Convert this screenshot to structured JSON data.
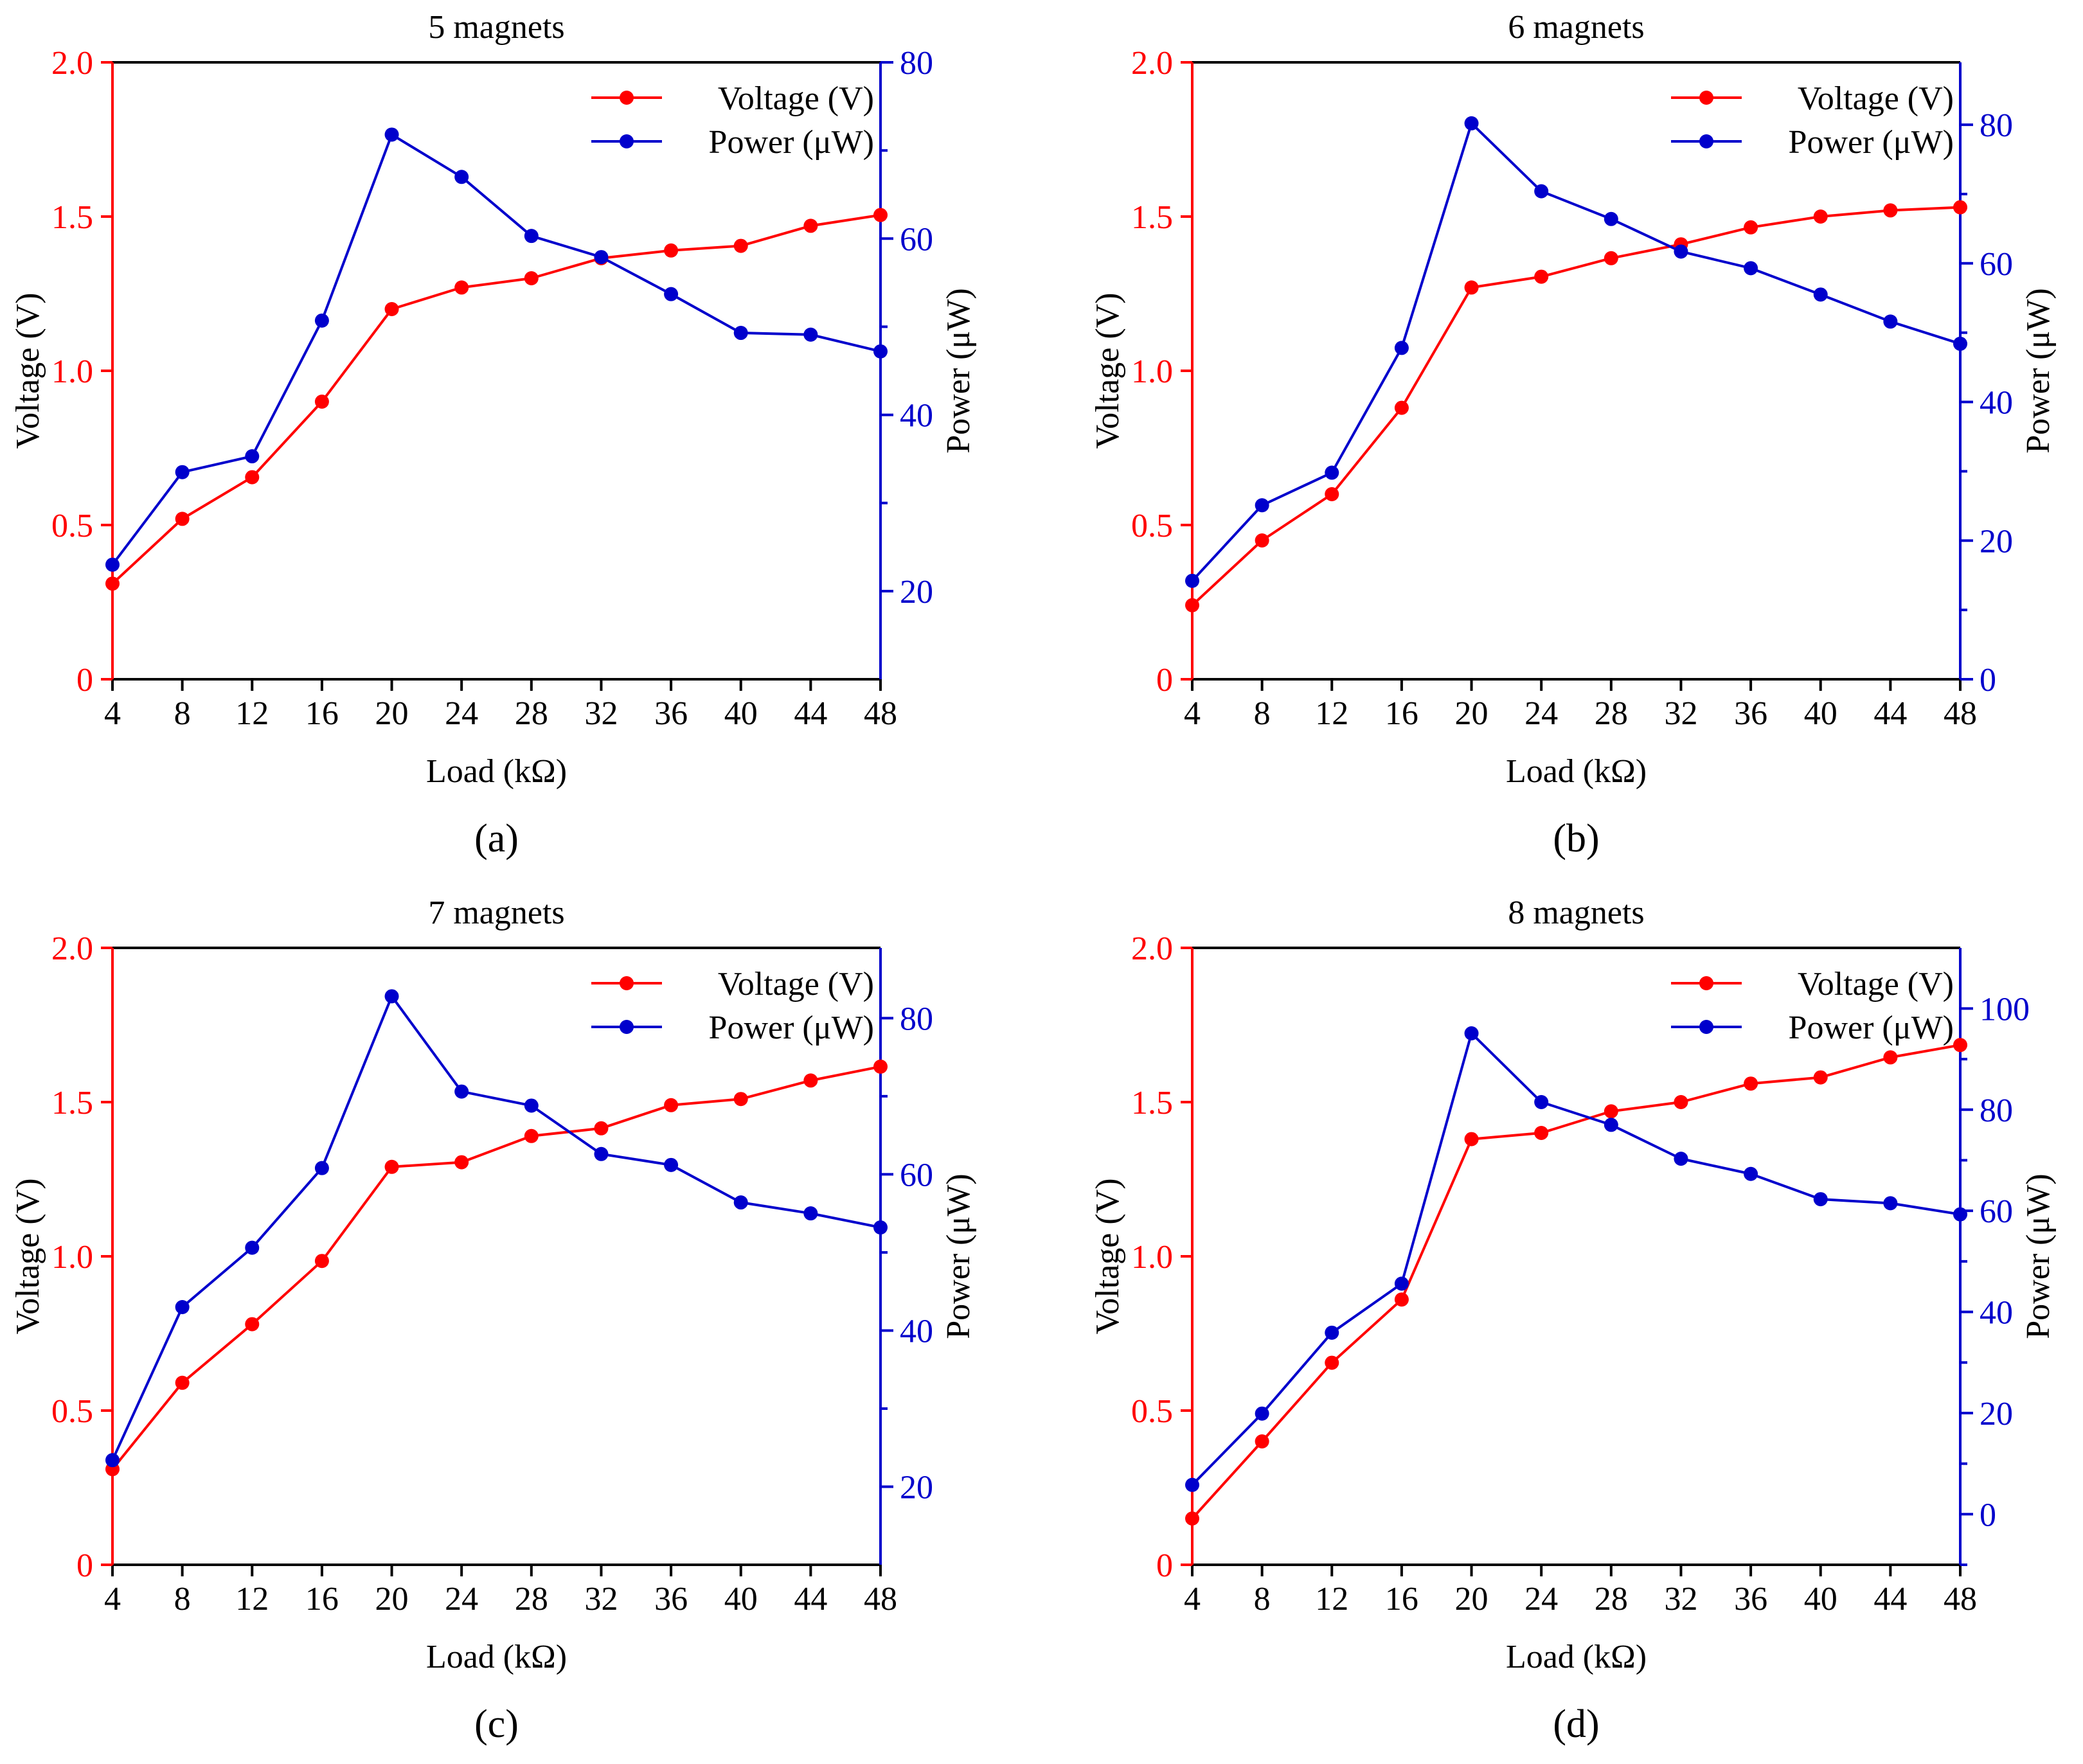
{
  "figure": {
    "panels": [
      "(a)",
      "(b)",
      "(c)",
      "(d)"
    ]
  },
  "colors": {
    "voltage": "#ff0000",
    "power": "#0000cc",
    "frame": "#000000"
  },
  "chart_data": [
    {
      "type": "line",
      "title": "5 magnets",
      "panel_label": "(a)",
      "xlabel": "Load (kΩ)",
      "ylabel": "Voltage (V)",
      "y2label": "Power (μW)",
      "x": [
        4,
        8,
        12,
        16,
        20,
        24,
        28,
        32,
        36,
        40,
        44,
        48
      ],
      "xlim": [
        4,
        48
      ],
      "xticks": [
        4,
        8,
        12,
        16,
        20,
        24,
        28,
        32,
        36,
        40,
        44,
        48
      ],
      "ylim": [
        0,
        2.0
      ],
      "yticks": [
        0,
        0.5,
        1.0,
        1.5,
        2.0
      ],
      "ytick_labels": [
        "0",
        "0.5",
        "1.0",
        "1.5",
        "2.0"
      ],
      "y2lim": [
        10,
        80
      ],
      "y2ticks": [
        20,
        40,
        60,
        80
      ],
      "y2ticks_minor": [
        30,
        50,
        70
      ],
      "legend_position": "top-right",
      "series": [
        {
          "name": "Voltage (V)",
          "axis": "left",
          "values": [
            0.31,
            0.52,
            0.655,
            0.9,
            1.2,
            1.27,
            1.3,
            1.365,
            1.39,
            1.405,
            1.47,
            1.505
          ]
        },
        {
          "name": "Power (μW)",
          "axis": "right",
          "values": [
            23,
            33.5,
            35.3,
            50.7,
            71.8,
            67,
            60.3,
            57.9,
            53.7,
            49.3,
            49.1,
            47.2
          ]
        }
      ]
    },
    {
      "type": "line",
      "title": "6 magnets",
      "panel_label": "(b)",
      "xlabel": "Load (kΩ)",
      "ylabel": "Voltage (V)",
      "y2label": "Power (μW)",
      "x": [
        4,
        8,
        12,
        16,
        20,
        24,
        28,
        32,
        36,
        40,
        44,
        48
      ],
      "xlim": [
        4,
        48
      ],
      "xticks": [
        4,
        8,
        12,
        16,
        20,
        24,
        28,
        32,
        36,
        40,
        44,
        48
      ],
      "ylim": [
        0,
        2.0
      ],
      "yticks": [
        0,
        0.5,
        1.0,
        1.5,
        2.0
      ],
      "ytick_labels": [
        "0",
        "0.5",
        "1.0",
        "1.5",
        "2.0"
      ],
      "y2lim": [
        0,
        89
      ],
      "y2ticks": [
        0,
        20,
        40,
        60,
        80
      ],
      "y2ticks_minor": [
        10,
        30,
        50,
        70
      ],
      "legend_position": "top-right",
      "series": [
        {
          "name": "Voltage (V)",
          "axis": "left",
          "values": [
            0.24,
            0.45,
            0.6,
            0.88,
            1.27,
            1.305,
            1.365,
            1.41,
            1.465,
            1.5,
            1.52,
            1.53
          ]
        },
        {
          "name": "Power (μW)",
          "axis": "right",
          "values": [
            14.2,
            25.1,
            29.8,
            47.8,
            80.2,
            70.4,
            66.4,
            61.7,
            59.3,
            55.5,
            51.6,
            48.4
          ]
        }
      ]
    },
    {
      "type": "line",
      "title": "7 magnets",
      "panel_label": "(c)",
      "xlabel": "Load (kΩ)",
      "ylabel": "Voltage (V)",
      "y2label": "Power (μW)",
      "x": [
        4,
        8,
        12,
        16,
        20,
        24,
        28,
        32,
        36,
        40,
        44,
        48
      ],
      "xlim": [
        4,
        48
      ],
      "xticks": [
        4,
        8,
        12,
        16,
        20,
        24,
        28,
        32,
        36,
        40,
        44,
        48
      ],
      "ylim": [
        0,
        2.0
      ],
      "yticks": [
        0,
        0.5,
        1.0,
        1.5,
        2.0
      ],
      "ytick_labels": [
        "0",
        "0.5",
        "1.0",
        "1.5",
        "2.0"
      ],
      "y2lim": [
        10,
        89
      ],
      "y2ticks": [
        20,
        40,
        60,
        80
      ],
      "y2ticks_minor": [
        30,
        50,
        70
      ],
      "legend_position": "top-right",
      "series": [
        {
          "name": "Voltage (V)",
          "axis": "left",
          "values": [
            0.31,
            0.59,
            0.78,
            0.985,
            1.29,
            1.305,
            1.39,
            1.415,
            1.49,
            1.51,
            1.57,
            1.615
          ]
        },
        {
          "name": "Power (μW)",
          "axis": "right",
          "values": [
            23.4,
            43,
            50.6,
            60.8,
            82.8,
            70.6,
            68.8,
            62.6,
            61.2,
            56.4,
            55,
            53.2
          ]
        }
      ]
    },
    {
      "type": "line",
      "title": "8 magnets",
      "panel_label": "(d)",
      "xlabel": "Load (kΩ)",
      "ylabel": "Voltage (V)",
      "y2label": "Power (μW)",
      "x": [
        4,
        8,
        12,
        16,
        20,
        24,
        28,
        32,
        36,
        40,
        44,
        48
      ],
      "xlim": [
        4,
        48
      ],
      "xticks": [
        4,
        8,
        12,
        16,
        20,
        24,
        28,
        32,
        36,
        40,
        44,
        48
      ],
      "ylim": [
        0,
        2.0
      ],
      "yticks": [
        0,
        0.5,
        1.0,
        1.5,
        2.0
      ],
      "ytick_labels": [
        "0",
        "0.5",
        "1.0",
        "1.5",
        "2.0"
      ],
      "y2lim": [
        -10,
        112
      ],
      "y2ticks": [
        0,
        20,
        40,
        60,
        80,
        100
      ],
      "y2ticks_minor": [
        -10,
        10,
        30,
        50,
        70,
        90
      ],
      "legend_position": "top-right",
      "series": [
        {
          "name": "Voltage (V)",
          "axis": "left",
          "values": [
            0.15,
            0.4,
            0.655,
            0.86,
            1.38,
            1.4,
            1.47,
            1.5,
            1.56,
            1.58,
            1.645,
            1.685
          ]
        },
        {
          "name": "Power (μW)",
          "axis": "right",
          "values": [
            5.8,
            19.9,
            35.9,
            45.6,
            95.1,
            81.5,
            77,
            70.3,
            67.3,
            62.3,
            61.5,
            59.3
          ]
        }
      ]
    }
  ]
}
